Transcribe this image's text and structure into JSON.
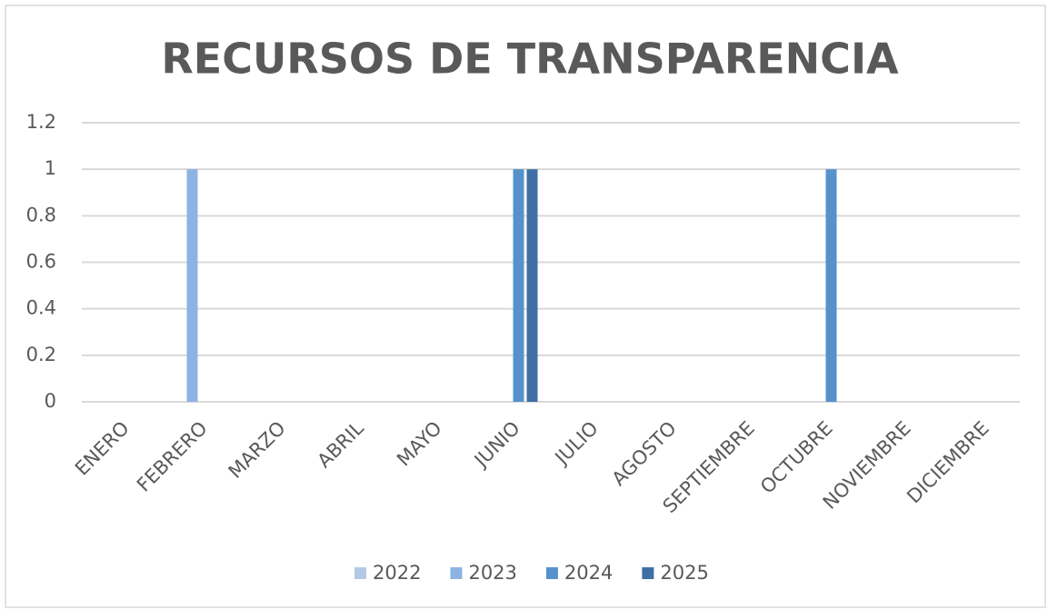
{
  "chart_data": {
    "type": "bar",
    "title": "RECURSOS DE TRANSPARENCIA",
    "categories": [
      "ENERO",
      "FEBRERO",
      "MARZO",
      "ABRIL",
      "MAYO",
      "JUNIO",
      "JULIO",
      "AGOSTO",
      "SEPTIEMBRE",
      "OCTUBRE",
      "NOVIEMBRE",
      "DICIEMBRE"
    ],
    "series": [
      {
        "name": "2022",
        "color": "#b4c9e6",
        "values": [
          0,
          0,
          0,
          0,
          0,
          0,
          0,
          0,
          0,
          0,
          0,
          0
        ]
      },
      {
        "name": "2023",
        "color": "#8db3e2",
        "values": [
          0,
          1,
          0,
          0,
          0,
          0,
          0,
          0,
          0,
          0,
          0,
          0
        ]
      },
      {
        "name": "2024",
        "color": "#5592cc",
        "values": [
          0,
          0,
          0,
          0,
          0,
          1,
          0,
          0,
          0,
          1,
          0,
          0
        ]
      },
      {
        "name": "2025",
        "color": "#3f6fa5",
        "values": [
          0,
          0,
          0,
          0,
          0,
          1,
          0,
          0,
          0,
          0,
          0,
          0
        ]
      }
    ],
    "ylim": [
      0,
      1.2
    ],
    "yticks": [
      0,
      0.2,
      0.4,
      0.6,
      0.8,
      1,
      1.2
    ],
    "grid": true,
    "legend": "bottom"
  }
}
